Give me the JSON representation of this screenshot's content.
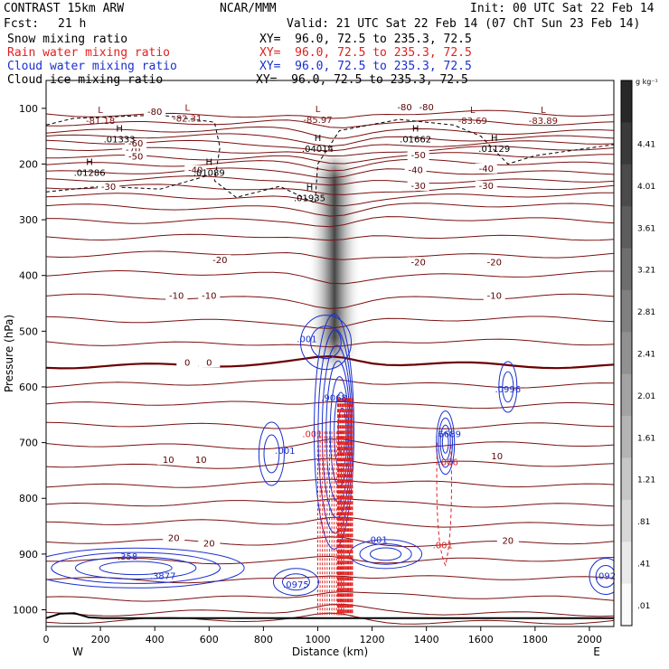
{
  "header": {
    "model": "CONTRAST 15km ARW",
    "org": "NCAR/MMM",
    "init": "Init: 00 UTC Sat 22 Feb 14",
    "fcst_label": "Fcst:",
    "fcst_value": "21 h",
    "valid": "Valid: 21 UTC Sat 22 Feb 14 (07 ChT Sun 23 Feb 14)"
  },
  "fields": [
    {
      "name": "Snow mixing ratio",
      "xy": "XY=  96.0, 72.5 to 235.3, 72.5",
      "color": "#000000"
    },
    {
      "name": "Rain water mixing ratio",
      "xy": "XY=  96.0, 72.5 to 235.3, 72.5",
      "color": "#e02020"
    },
    {
      "name": "Cloud water mixing ratio",
      "xy": "XY=  96.0, 72.5 to 235.3, 72.5",
      "color": "#1a2fd0"
    },
    {
      "name": "Cloud ice mixing ratio",
      "xy": "XY=  96.0, 72.5 to 235.3, 72.5",
      "color": "#000000"
    }
  ],
  "chart_data": {
    "type": "heatmap",
    "xlabel": "Distance (km)",
    "ylabel": "Pressure (hPa)",
    "xlim": [
      0,
      2090
    ],
    "ylim": [
      50,
      1030
    ],
    "x_ticks": [
      0,
      200,
      400,
      600,
      800,
      1000,
      1200,
      1400,
      1600,
      1800,
      2000
    ],
    "y_ticks": [
      100,
      200,
      300,
      400,
      500,
      600,
      700,
      800,
      900,
      1000
    ],
    "end_labels": {
      "left": "W",
      "right": "E"
    },
    "colorbar": {
      "unit": "g kg⁻¹",
      "ticks": [
        "4.41",
        "4.01",
        "3.61",
        "3.21",
        "2.81",
        "2.41",
        "2.01",
        "1.61",
        "1.21",
        ".81",
        ".41",
        ".01"
      ]
    },
    "temperature_labels_C": [
      -80,
      -70,
      -60,
      -50,
      -40,
      -30,
      -20,
      -10,
      0,
      10,
      20
    ],
    "extrema_labels": [
      {
        "type": "L",
        "value": "-81.18"
      },
      {
        "type": "L",
        "value": "-82.31"
      },
      {
        "type": "L",
        "value": "-85.97"
      },
      {
        "type": "L",
        "value": "-83.69"
      },
      {
        "type": "L",
        "value": "-83.89"
      },
      {
        "type": "H",
        "value": ".01333"
      },
      {
        "type": "H",
        "value": ".04014"
      },
      {
        "type": "H",
        "value": ".01662"
      },
      {
        "type": "H",
        "value": ".01129"
      },
      {
        "type": "H",
        "value": ".01286"
      },
      {
        "type": "H",
        "value": ".01089"
      },
      {
        "type": "H",
        "value": ".01935"
      }
    ],
    "cloud_water_labels": [
      ".001",
      ".9068",
      ".6689",
      ".0996",
      ".001",
      ".358",
      ".3877",
      ".0975",
      ".092",
      ".001"
    ],
    "rain_labels": [
      ".001",
      ".006",
      ".001"
    ]
  }
}
